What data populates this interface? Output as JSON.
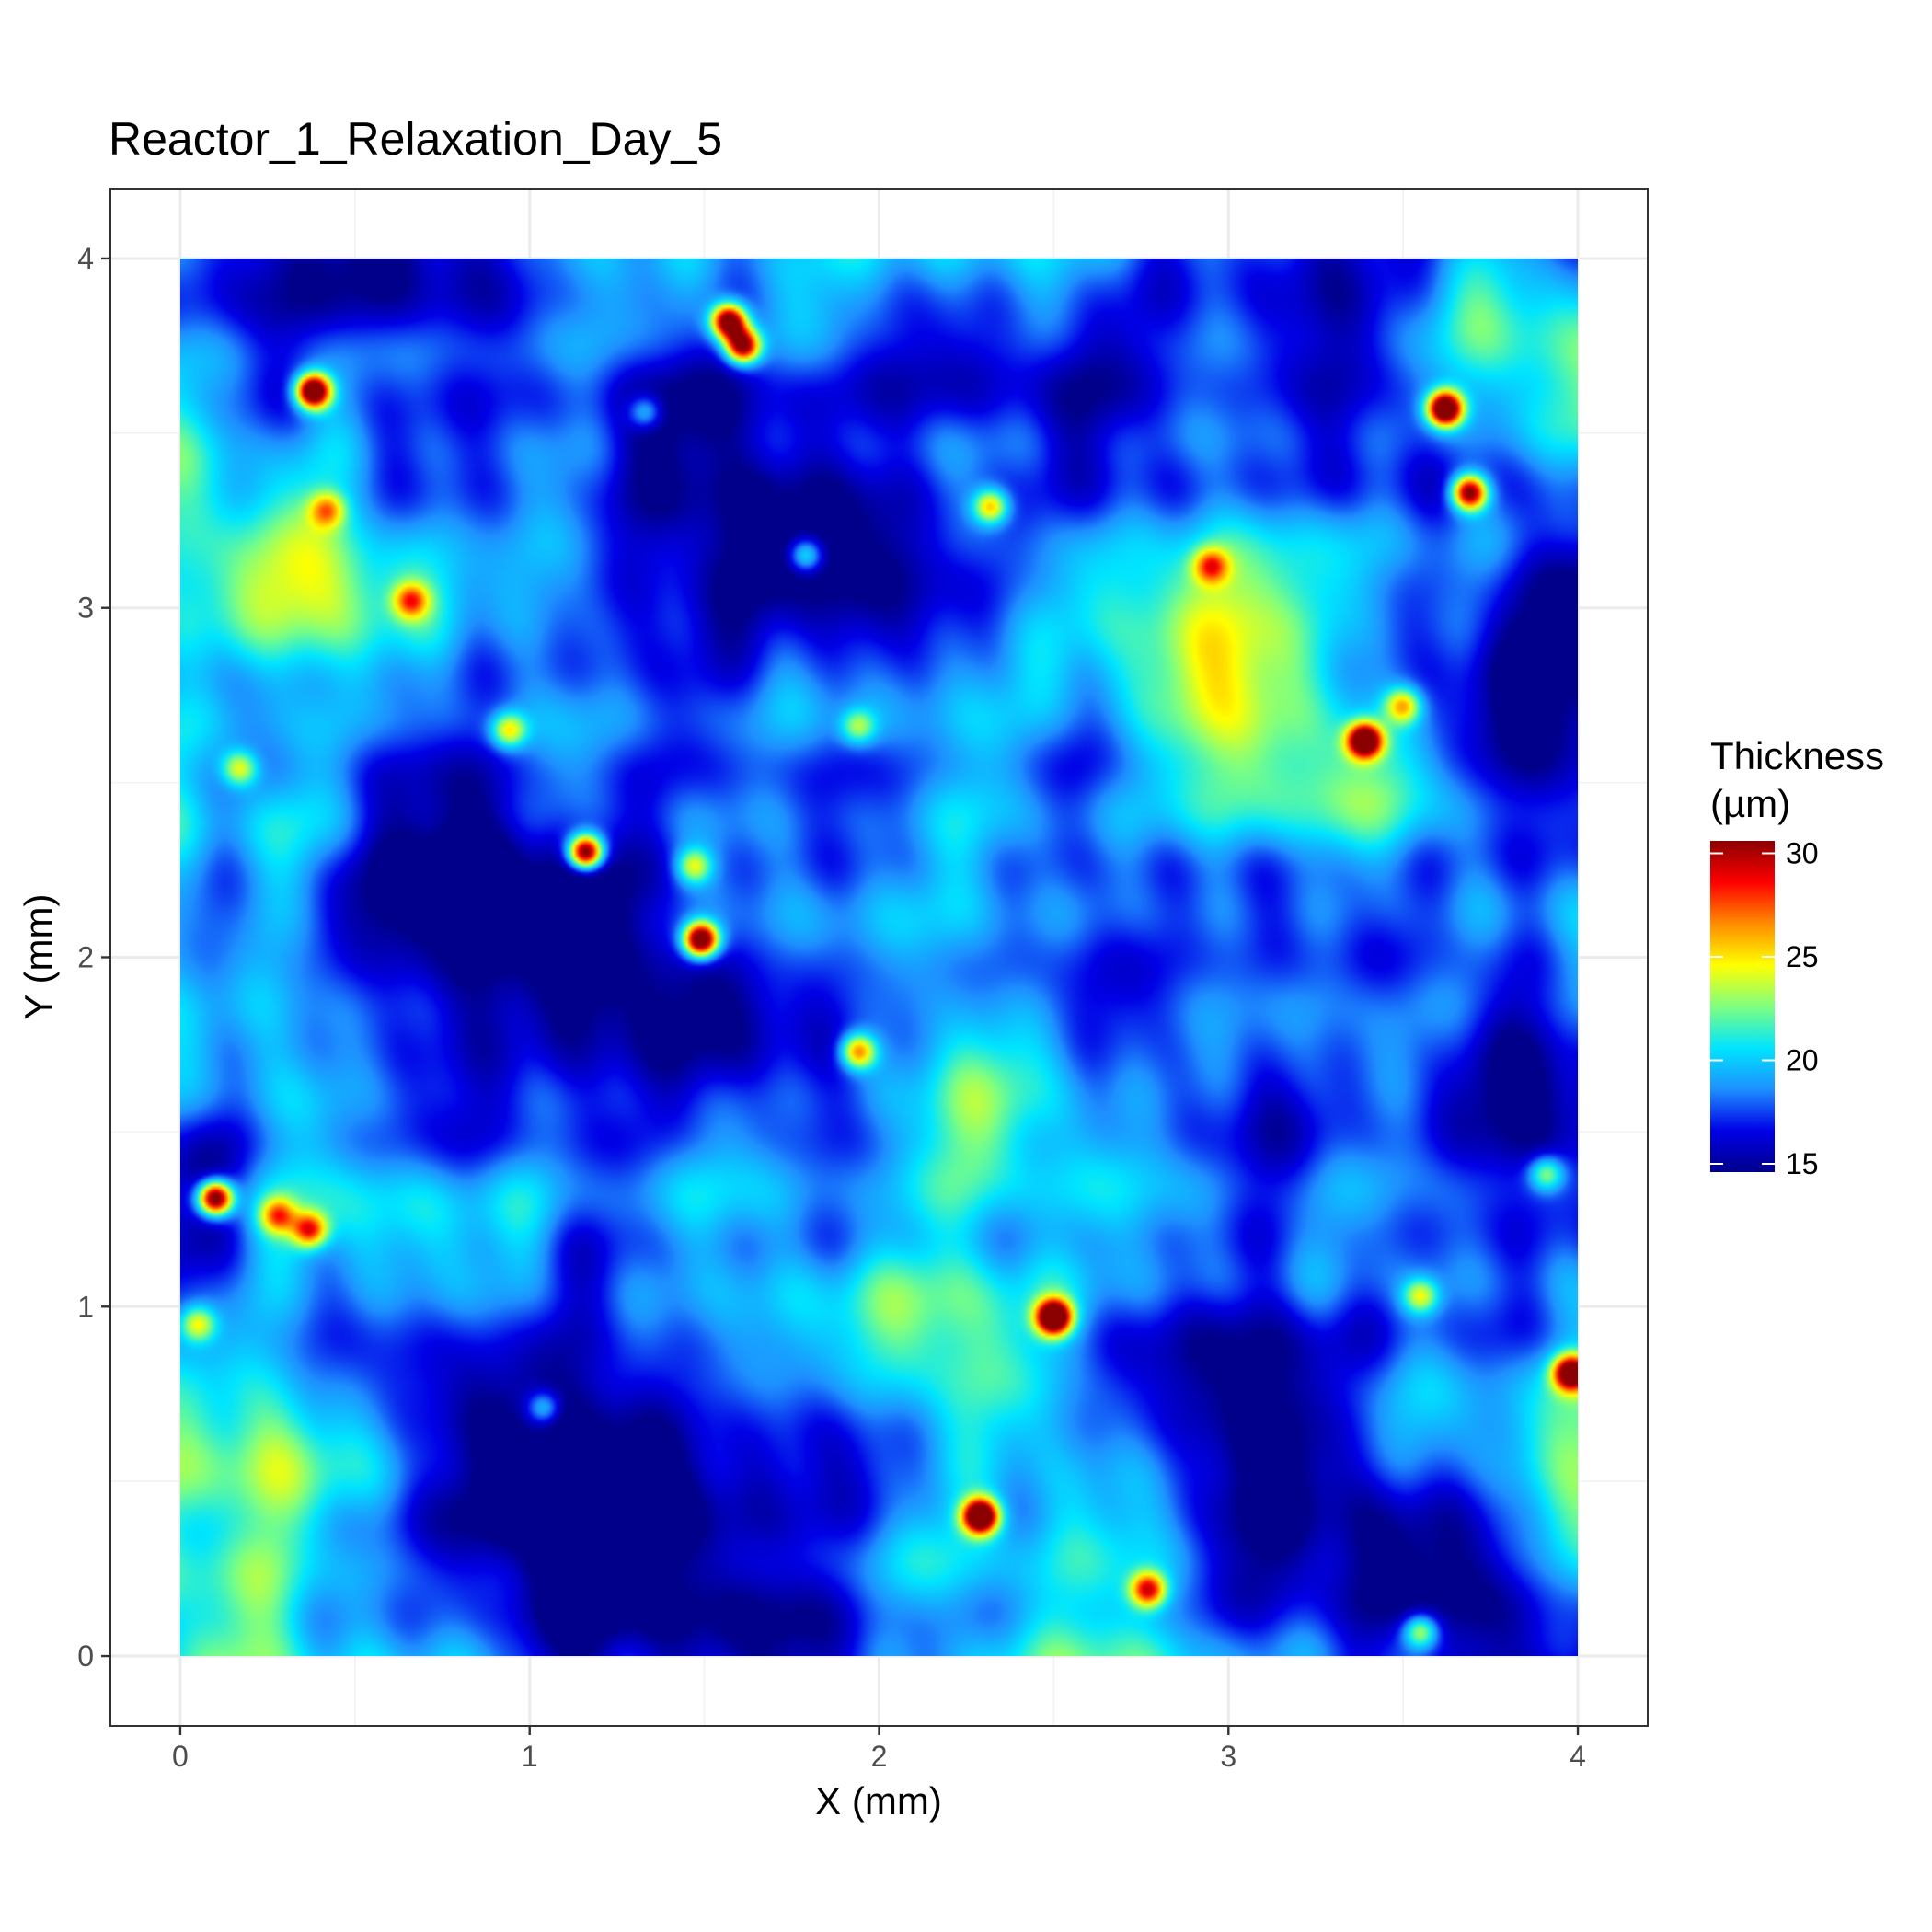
{
  "chart_data": {
    "type": "heatmap",
    "title": "Reactor_1_Relaxation_Day_5",
    "xlabel": "X (mm)",
    "ylabel": "Y (mm)",
    "xlim": [
      -0.2,
      4.2
    ],
    "ylim": [
      -0.2,
      4.2
    ],
    "data_extent": {
      "x": [
        0,
        4
      ],
      "y": [
        0,
        4
      ]
    },
    "x_ticks": [
      0,
      1,
      2,
      3,
      4
    ],
    "y_ticks": [
      0,
      1,
      2,
      3,
      4
    ],
    "grid": true,
    "legend": {
      "title_lines": [
        "Thickness",
        "(µm)"
      ],
      "position": "right",
      "range": [
        14.6,
        30.6
      ],
      "ticks": [
        15,
        20,
        25,
        30
      ]
    },
    "colormap": [
      "#00008b",
      "#0000e6",
      "#1e90ff",
      "#00e5ff",
      "#7fff7f",
      "#ffff00",
      "#ff8c00",
      "#ff0000",
      "#8b0000"
    ],
    "background_thickness_um": 18,
    "hotspots": [
      {
        "x": 0.38,
        "y": 3.62,
        "peak": 31
      },
      {
        "x": 1.57,
        "y": 3.82,
        "peak": 30
      },
      {
        "x": 1.61,
        "y": 3.75,
        "peak": 29
      },
      {
        "x": 3.62,
        "y": 3.57,
        "peak": 31
      },
      {
        "x": 3.69,
        "y": 3.33,
        "peak": 29
      },
      {
        "x": 3.39,
        "y": 2.62,
        "peak": 30
      },
      {
        "x": 1.16,
        "y": 2.3,
        "peak": 31
      },
      {
        "x": 1.49,
        "y": 2.05,
        "peak": 31
      },
      {
        "x": 1.94,
        "y": 1.73,
        "peak": 27
      },
      {
        "x": 0.1,
        "y": 1.31,
        "peak": 31
      },
      {
        "x": 0.37,
        "y": 1.22,
        "peak": 27
      },
      {
        "x": 2.5,
        "y": 0.97,
        "peak": 31
      },
      {
        "x": 3.98,
        "y": 0.81,
        "peak": 29
      },
      {
        "x": 2.29,
        "y": 0.4,
        "peak": 31
      },
      {
        "x": 2.77,
        "y": 0.19,
        "peak": 28
      },
      {
        "x": 0.66,
        "y": 3.02,
        "peak": 25
      },
      {
        "x": 0.94,
        "y": 2.65,
        "peak": 25
      },
      {
        "x": 1.47,
        "y": 2.26,
        "peak": 24
      },
      {
        "x": 2.95,
        "y": 3.12,
        "peak": 25
      },
      {
        "x": 3.5,
        "y": 2.72,
        "peak": 25
      },
      {
        "x": 0.17,
        "y": 2.54,
        "peak": 24
      },
      {
        "x": 0.42,
        "y": 3.28,
        "peak": 24
      },
      {
        "x": 3.55,
        "y": 0.07,
        "peak": 25
      },
      {
        "x": 2.32,
        "y": 3.29,
        "peak": 26
      },
      {
        "x": 3.55,
        "y": 1.03,
        "peak": 24
      },
      {
        "x": 3.91,
        "y": 1.38,
        "peak": 24
      },
      {
        "x": 0.05,
        "y": 0.95,
        "peak": 24
      },
      {
        "x": 1.79,
        "y": 3.15,
        "peak": 24
      },
      {
        "x": 1.33,
        "y": 3.56,
        "peak": 23
      },
      {
        "x": 1.94,
        "y": 2.66,
        "peak": 23
      },
      {
        "x": 0.28,
        "y": 1.26,
        "peak": 25
      },
      {
        "x": 1.04,
        "y": 0.71,
        "peak": 23
      }
    ]
  }
}
